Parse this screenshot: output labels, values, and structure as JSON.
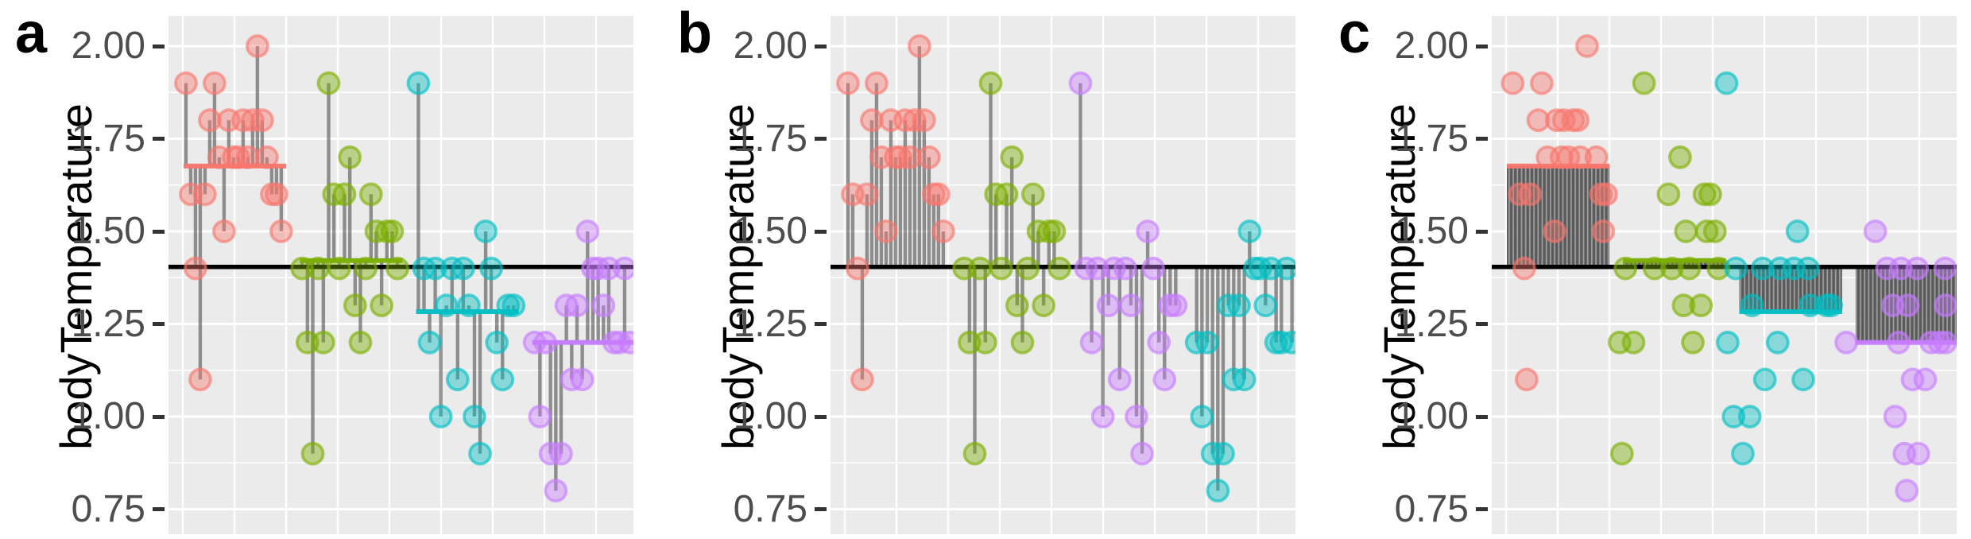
{
  "chart_data": {
    "type": "scatter",
    "title": "",
    "xlabel": "",
    "ylabel": "bodyTemperature",
    "y_tick_labels": [
      "2.00",
      "1.75",
      "1.50",
      "1.25",
      "1.00",
      "0.75"
    ],
    "y_tick_values": [
      2.0,
      1.75,
      1.5,
      1.25,
      1.0,
      0.75
    ],
    "ylim": [
      0.67,
      2.08
    ],
    "grid": true,
    "legend": false,
    "x_axis_labels": "none",
    "grand_mean": 1.404,
    "group_means": [
      1.676,
      1.421,
      1.283,
      1.2
    ],
    "groups": [
      {
        "id": "group-1",
        "values": [
          1.9,
          1.6,
          1.4,
          1.1,
          1.6,
          1.8,
          1.9,
          1.7,
          1.5,
          1.8,
          1.7,
          1.7,
          1.8,
          1.7,
          1.8,
          2.0,
          1.8,
          1.7,
          1.6,
          1.6,
          1.5
        ],
        "jitter_x": [
          0.18,
          0.24,
          0.28,
          0.3,
          0.33,
          0.4,
          0.43,
          0.48,
          0.54,
          0.56,
          0.6,
          0.66,
          0.62,
          0.76,
          0.7,
          0.82,
          0.74,
          0.9,
          0.94,
          0.985,
          0.96
        ]
      },
      {
        "id": "group-2",
        "values": [
          1.4,
          1.2,
          0.9,
          1.4,
          1.2,
          1.9,
          1.6,
          1.4,
          1.6,
          1.7,
          1.3,
          1.2,
          1.4,
          1.6,
          1.5,
          1.3,
          1.5,
          1.5,
          1.4
        ],
        "jitter_x": [
          0.15,
          0.1,
          0.12,
          0.4,
          0.22,
          0.31,
          0.52,
          0.55,
          0.83,
          0.62,
          0.65,
          0.73,
          0.7,
          0.88,
          0.67,
          0.8,
          0.85,
          0.92,
          0.95
        ]
      },
      {
        "id": "group-3",
        "values": [
          1.9,
          1.4,
          1.2,
          1.4,
          1.0,
          1.3,
          1.4,
          1.1,
          1.4,
          1.3,
          1.0,
          0.9,
          1.5,
          1.4,
          1.2,
          1.1,
          1.3,
          1.3
        ],
        "jitter_x": [
          0.02,
          0.1,
          0.03,
          0.33,
          0.08,
          0.24,
          0.48,
          0.35,
          0.6,
          0.74,
          0.22,
          0.16,
          0.63,
          0.72,
          0.46,
          0.68,
          0.88,
          0.92
        ]
      },
      {
        "id": "group-4",
        "values": [
          1.2,
          1.0,
          1.2,
          0.9,
          0.8,
          0.9,
          1.3,
          1.1,
          1.3,
          1.1,
          1.5,
          1.4,
          1.4,
          1.3,
          1.4,
          1.2,
          1.2,
          1.4,
          1.2
        ],
        "jitter_x": [
          0.05,
          0.47,
          0.5,
          0.55,
          0.57,
          0.67,
          0.45,
          0.62,
          0.58,
          0.73,
          0.3,
          0.4,
          0.52,
          0.93,
          0.66,
          0.78,
          0.85,
          0.9,
          0.97
        ]
      }
    ],
    "panels": [
      {
        "label": "a",
        "mode": "segments-to-group-mean",
        "group_colors": [
          "#F8766D",
          "#7CAE00",
          "#00BFC4",
          "#C77CFF"
        ],
        "show_group_mean_lines": true
      },
      {
        "label": "b",
        "mode": "segments-to-grand-mean",
        "group_colors": [
          "#F8766D",
          "#7CAE00",
          "#C77CFF",
          "#00BFC4"
        ],
        "show_group_mean_lines": false
      },
      {
        "label": "c",
        "mode": "jitter-with-between-group-rects",
        "group_colors": [
          "#F8766D",
          "#7CAE00",
          "#00BFC4",
          "#C77CFF"
        ],
        "show_group_mean_lines": true
      }
    ],
    "colors": {
      "grand_mean_line": "#000000",
      "deviation_segment": "#424242",
      "hatch_rect_base": "#4d4d4d",
      "hatch_rect_stripe": "#97979b",
      "panel_background": "#EBEBEB",
      "gridline": "#FFFFFF",
      "tick_label": "#4d4d4d",
      "axis_title": "#000000"
    }
  }
}
